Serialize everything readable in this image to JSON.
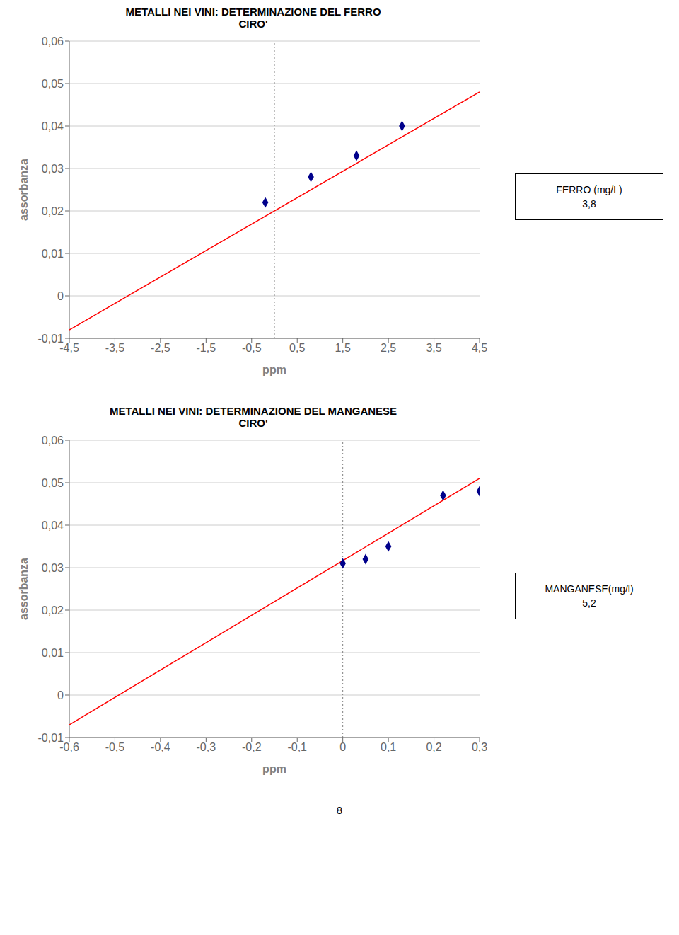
{
  "chart_data": [
    {
      "type": "scatter",
      "title": "METALLI NEI VINI: DETERMINAZIONE DEL FERRO",
      "subtitle": "CIRO'",
      "x_label": "ppm",
      "y_label": "assorbanza",
      "xlim": [
        -4.5,
        4.5
      ],
      "xticks": [
        {
          "value": -4.5,
          "label": "-4,5"
        },
        {
          "value": -3.5,
          "label": "-3,5"
        },
        {
          "value": -2.5,
          "label": "-2,5"
        },
        {
          "value": -1.5,
          "label": "-1,5"
        },
        {
          "value": -0.5,
          "label": "-0,5"
        },
        {
          "value": 0.5,
          "label": "0,5"
        },
        {
          "value": 1.5,
          "label": "1,5"
        },
        {
          "value": 2.5,
          "label": "2,5"
        },
        {
          "value": 3.5,
          "label": "3,5"
        },
        {
          "value": 4.5,
          "label": "4,5"
        }
      ],
      "ylim": [
        -0.01,
        0.06
      ],
      "yticks": [
        {
          "value": -0.01,
          "label": "-0,01"
        },
        0,
        {
          "value": 0.01,
          "label": "0,01"
        },
        {
          "value": 0.02,
          "label": "0,02"
        },
        {
          "value": 0.03,
          "label": "0,03"
        },
        {
          "value": 0.04,
          "label": "0,04"
        },
        {
          "value": 0.05,
          "label": "0,05"
        },
        {
          "value": 0.06,
          "label": "0,06"
        }
      ],
      "grid": true,
      "reference_x": 0,
      "series": [
        {
          "type": "line",
          "color": "#FF0000",
          "x": [
            -4.5,
            4.5
          ],
          "values": [
            -0.008,
            0.048
          ]
        },
        {
          "type": "scatter",
          "marker": "diamond",
          "color": "#00008B",
          "x": [
            -0.2,
            0.8,
            1.8,
            2.8
          ],
          "values": [
            0.022,
            0.028,
            0.033,
            0.04
          ]
        }
      ],
      "annotation": [
        "FERRO (mg/L)",
        "3,8"
      ]
    },
    {
      "type": "scatter",
      "title": "METALLI NEI VINI: DETERMINAZIONE DEL MANGANESE",
      "subtitle": "CIRO'",
      "x_label": "ppm",
      "y_label": "assorbanza",
      "xlim": [
        -0.6,
        0.3
      ],
      "xticks": [
        {
          "value": -0.6,
          "label": "-0,6"
        },
        {
          "value": -0.5,
          "label": "-0,5"
        },
        {
          "value": -0.4,
          "label": "-0,4"
        },
        {
          "value": -0.3,
          "label": "-0,3"
        },
        {
          "value": -0.2,
          "label": "-0,2"
        },
        {
          "value": -0.1,
          "label": "-0,1"
        },
        0,
        {
          "value": 0.1,
          "label": "0,1"
        },
        {
          "value": 0.2,
          "label": "0,2"
        },
        {
          "value": 0.3,
          "label": "0,3"
        }
      ],
      "ylim": [
        -0.01,
        0.06
      ],
      "yticks": [
        {
          "value": -0.01,
          "label": "-0,01"
        },
        0,
        {
          "value": 0.01,
          "label": "0,01"
        },
        {
          "value": 0.02,
          "label": "0,02"
        },
        {
          "value": 0.03,
          "label": "0,03"
        },
        {
          "value": 0.04,
          "label": "0,04"
        },
        {
          "value": 0.05,
          "label": "0,05"
        },
        {
          "value": 0.06,
          "label": "0,06"
        }
      ],
      "grid": true,
      "reference_x": 0,
      "series": [
        {
          "type": "line",
          "color": "#FF0000",
          "x": [
            -0.6,
            0.3
          ],
          "values": [
            -0.007,
            0.051
          ]
        },
        {
          "type": "scatter",
          "marker": "diamond",
          "color": "#00008B",
          "x": [
            0.0,
            0.05,
            0.1,
            0.22,
            0.3
          ],
          "values": [
            0.031,
            0.032,
            0.035,
            0.047,
            0.048
          ]
        }
      ],
      "annotation": [
        "MANGANESE(mg/l)",
        "5,2"
      ]
    }
  ],
  "footer": "8"
}
